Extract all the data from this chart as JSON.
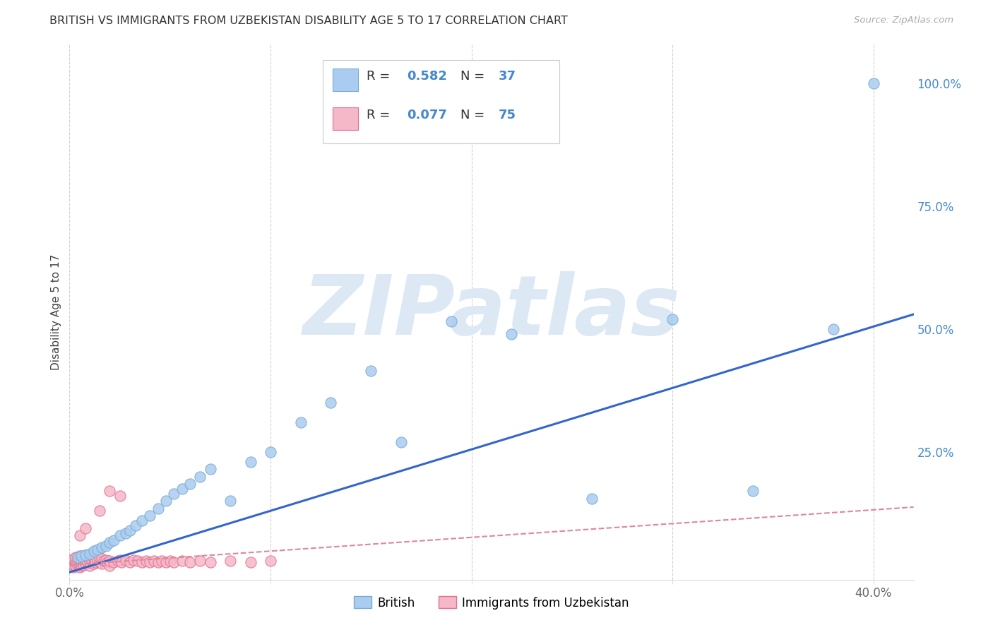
{
  "title": "BRITISH VS IMMIGRANTS FROM UZBEKISTAN DISABILITY AGE 5 TO 17 CORRELATION CHART",
  "source": "Source: ZipAtlas.com",
  "ylabel": "Disability Age 5 to 17",
  "background_color": "#ffffff",
  "grid_color": "#cccccc",
  "xlim": [
    0.0,
    0.42
  ],
  "ylim": [
    -0.01,
    1.08
  ],
  "xticks": [
    0.0,
    0.1,
    0.2,
    0.3,
    0.4
  ],
  "xtick_labels": [
    "0.0%",
    "",
    "",
    "",
    "40.0%"
  ],
  "yticks_right": [
    0.0,
    0.25,
    0.5,
    0.75,
    1.0
  ],
  "ytick_labels_right": [
    "",
    "25.0%",
    "50.0%",
    "75.0%",
    "100.0%"
  ],
  "british_color": "#aaccf0",
  "british_edge_color": "#7aaad0",
  "uzbek_color": "#f5b8c8",
  "uzbek_edge_color": "#e07090",
  "trend_british_color": "#3366cc",
  "trend_uzbek_color": "#dd8899",
  "british_x": [
    0.004,
    0.006,
    0.008,
    0.01,
    0.012,
    0.014,
    0.016,
    0.018,
    0.02,
    0.022,
    0.025,
    0.028,
    0.03,
    0.033,
    0.036,
    0.04,
    0.044,
    0.048,
    0.052,
    0.056,
    0.06,
    0.065,
    0.07,
    0.08,
    0.09,
    0.1,
    0.115,
    0.13,
    0.15,
    0.165,
    0.19,
    0.22,
    0.26,
    0.3,
    0.34,
    0.38,
    0.4
  ],
  "british_y": [
    0.035,
    0.038,
    0.04,
    0.042,
    0.048,
    0.052,
    0.055,
    0.058,
    0.065,
    0.07,
    0.08,
    0.085,
    0.09,
    0.1,
    0.11,
    0.12,
    0.135,
    0.15,
    0.165,
    0.175,
    0.185,
    0.2,
    0.215,
    0.15,
    0.23,
    0.25,
    0.31,
    0.35,
    0.415,
    0.27,
    0.515,
    0.49,
    0.155,
    0.52,
    0.17,
    0.5,
    1.0
  ],
  "uzbek_x": [
    0.001,
    0.001,
    0.001,
    0.002,
    0.002,
    0.002,
    0.002,
    0.003,
    0.003,
    0.003,
    0.003,
    0.004,
    0.004,
    0.004,
    0.005,
    0.005,
    0.005,
    0.005,
    0.006,
    0.006,
    0.006,
    0.007,
    0.007,
    0.007,
    0.008,
    0.008,
    0.008,
    0.009,
    0.009,
    0.01,
    0.01,
    0.01,
    0.011,
    0.012,
    0.012,
    0.013,
    0.014,
    0.015,
    0.015,
    0.016,
    0.016,
    0.017,
    0.018,
    0.019,
    0.02,
    0.02,
    0.022,
    0.024,
    0.025,
    0.026,
    0.028,
    0.03,
    0.032,
    0.034,
    0.036,
    0.038,
    0.04,
    0.042,
    0.044,
    0.046,
    0.048,
    0.05,
    0.052,
    0.056,
    0.06,
    0.065,
    0.07,
    0.08,
    0.09,
    0.1,
    0.015,
    0.02,
    0.025,
    0.005,
    0.008
  ],
  "uzbek_y": [
    0.018,
    0.022,
    0.025,
    0.015,
    0.02,
    0.028,
    0.032,
    0.018,
    0.025,
    0.03,
    0.035,
    0.02,
    0.028,
    0.035,
    0.015,
    0.022,
    0.03,
    0.038,
    0.018,
    0.025,
    0.035,
    0.02,
    0.028,
    0.038,
    0.022,
    0.03,
    0.04,
    0.025,
    0.035,
    0.018,
    0.025,
    0.035,
    0.028,
    0.022,
    0.032,
    0.025,
    0.03,
    0.025,
    0.035,
    0.022,
    0.032,
    0.028,
    0.03,
    0.025,
    0.018,
    0.028,
    0.025,
    0.028,
    0.03,
    0.025,
    0.03,
    0.025,
    0.03,
    0.028,
    0.025,
    0.028,
    0.025,
    0.028,
    0.025,
    0.028,
    0.025,
    0.028,
    0.025,
    0.028,
    0.025,
    0.028,
    0.025,
    0.028,
    0.025,
    0.028,
    0.13,
    0.17,
    0.16,
    0.08,
    0.095
  ],
  "watermark": "ZIPatlas",
  "watermark_color": "#dde8f5"
}
